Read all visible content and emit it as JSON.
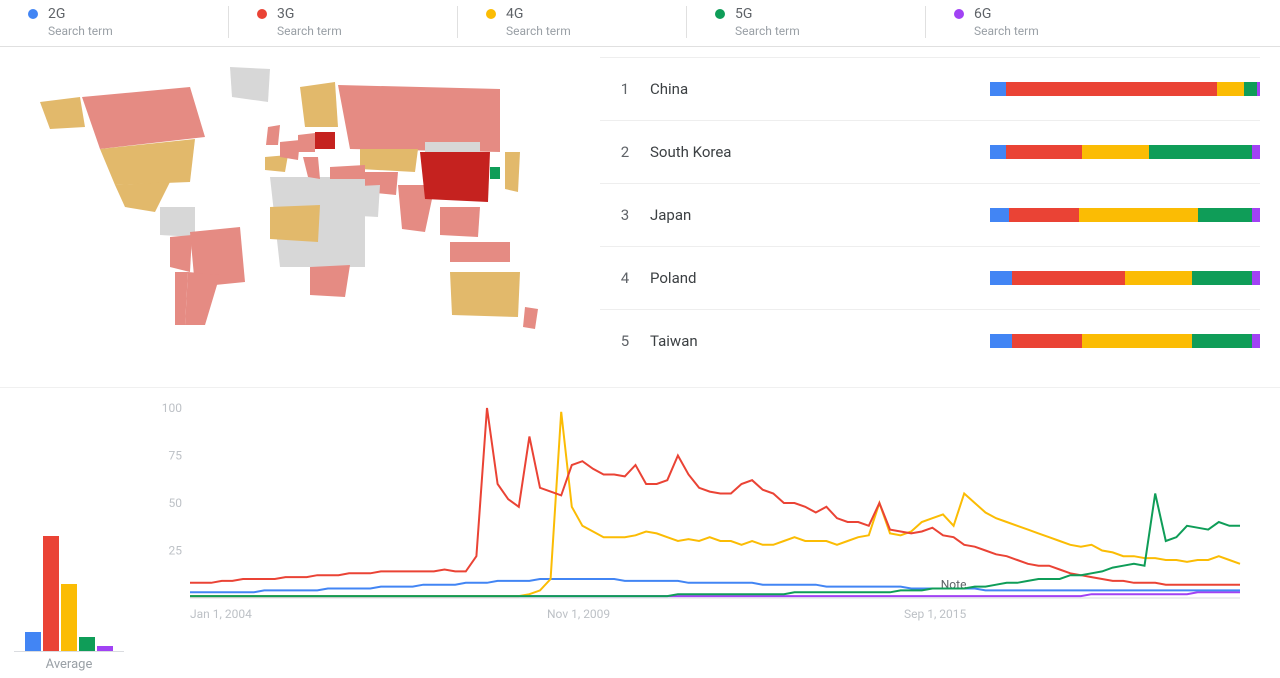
{
  "colors": {
    "s2g": "#4285f4",
    "s3g": "#ea4335",
    "s4g": "#fbbc04",
    "s5g": "#0f9d58",
    "s6g": "#a142f4",
    "muted_red": "#e58b83",
    "muted_yellow": "#e2b96b",
    "muted_dark_red": "#c5221f",
    "land_grey": "#d7d7d7",
    "text_muted": "#9aa0a6"
  },
  "legend": {
    "subtitle": "Search term",
    "items": [
      {
        "key": "s2g",
        "label": "2G"
      },
      {
        "key": "s3g",
        "label": "3G"
      },
      {
        "key": "s4g",
        "label": "4G"
      },
      {
        "key": "s5g",
        "label": "5G"
      },
      {
        "key": "s6g",
        "label": "6G"
      }
    ]
  },
  "ranked": {
    "columns": [
      "rank",
      "name",
      "breakdown"
    ],
    "rows": [
      {
        "rank": 1,
        "name": "China",
        "breakdown": {
          "s2g": 6,
          "s3g": 78,
          "s4g": 10,
          "s5g": 5,
          "s6g": 1
        }
      },
      {
        "rank": 2,
        "name": "South Korea",
        "breakdown": {
          "s2g": 6,
          "s3g": 28,
          "s4g": 25,
          "s5g": 38,
          "s6g": 3
        }
      },
      {
        "rank": 3,
        "name": "Japan",
        "breakdown": {
          "s2g": 7,
          "s3g": 26,
          "s4g": 44,
          "s5g": 20,
          "s6g": 3
        }
      },
      {
        "rank": 4,
        "name": "Poland",
        "breakdown": {
          "s2g": 8,
          "s3g": 42,
          "s4g": 25,
          "s5g": 22,
          "s6g": 3
        }
      },
      {
        "rank": 5,
        "name": "Taiwan",
        "breakdown": {
          "s2g": 8,
          "s3g": 26,
          "s4g": 41,
          "s5g": 22,
          "s6g": 3
        }
      }
    ]
  },
  "map": {
    "fill_default": "land_grey",
    "countries": {
      "canada": "muted_red",
      "usa": "muted_yellow",
      "mexico": "muted_yellow",
      "brazil": "muted_red",
      "peru": "muted_red",
      "argentina": "muted_red",
      "chile": "muted_red",
      "uk": "muted_red",
      "spain": "muted_yellow",
      "france": "muted_red",
      "germany": "muted_red",
      "italy": "muted_red",
      "poland": "muted_dark_red",
      "nordics": "muted_yellow",
      "russia": "muted_red",
      "kazakhstan": "muted_yellow",
      "turkey": "muted_red",
      "iran": "muted_red",
      "india": "muted_red",
      "china": "muted_dark_red",
      "mongolia": "land_grey",
      "japan": "muted_yellow",
      "skorea": "s5g",
      "seasia": "muted_red",
      "indonesia": "muted_red",
      "australia": "muted_yellow",
      "nz": "muted_red",
      "saudi": "land_grey",
      "egypt": "land_grey",
      "wafrica": "muted_yellow",
      "safrica": "muted_red",
      "alaska": "muted_yellow",
      "greenland": "land_grey"
    }
  },
  "average": {
    "label": "Average",
    "values": {
      "s2g": 8,
      "s3g": 48,
      "s4g": 28,
      "s5g": 6,
      "s6g": 2
    },
    "y_max": 50
  },
  "timeline": {
    "type": "line",
    "ylim": [
      0,
      100
    ],
    "y_ticks": [
      25,
      50,
      75,
      100
    ],
    "x_ticks": [
      {
        "label": "Jan 1, 2004",
        "x_frac": 0.0
      },
      {
        "label": "Nov 1, 2009",
        "x_frac": 0.34
      },
      {
        "label": "Sep 1, 2015",
        "x_frac": 0.68
      }
    ],
    "note": {
      "text": "Note",
      "x_frac": 0.715,
      "y_value": 4
    },
    "n_points": 100,
    "line_width": 2,
    "series": {
      "s2g": [
        3,
        3,
        3,
        3,
        3,
        3,
        3,
        4,
        4,
        4,
        4,
        4,
        4,
        5,
        5,
        5,
        5,
        5,
        6,
        6,
        6,
        6,
        7,
        7,
        7,
        7,
        8,
        8,
        8,
        9,
        9,
        9,
        9,
        10,
        10,
        10,
        10,
        10,
        10,
        10,
        10,
        9,
        9,
        9,
        9,
        9,
        9,
        8,
        8,
        8,
        8,
        8,
        8,
        8,
        7,
        7,
        7,
        7,
        7,
        7,
        6,
        6,
        6,
        6,
        6,
        6,
        6,
        6,
        5,
        5,
        5,
        5,
        5,
        5,
        5,
        4,
        4,
        4,
        4,
        4,
        4,
        4,
        4,
        4,
        4,
        4,
        4,
        4,
        4,
        4,
        4,
        4,
        4,
        4,
        4,
        4,
        4,
        4,
        4,
        4
      ],
      "s3g": [
        8,
        8,
        8,
        9,
        9,
        10,
        10,
        10,
        10,
        11,
        11,
        11,
        12,
        12,
        12,
        13,
        13,
        13,
        14,
        14,
        14,
        14,
        14,
        14,
        15,
        14,
        14,
        22,
        100,
        60,
        52,
        48,
        85,
        58,
        56,
        54,
        70,
        72,
        68,
        65,
        65,
        64,
        70,
        60,
        60,
        62,
        75,
        65,
        58,
        56,
        55,
        55,
        60,
        62,
        57,
        55,
        50,
        50,
        48,
        45,
        48,
        42,
        40,
        40,
        38,
        50,
        36,
        35,
        34,
        35,
        37,
        33,
        32,
        28,
        27,
        25,
        23,
        22,
        20,
        18,
        17,
        17,
        15,
        13,
        12,
        11,
        10,
        9,
        9,
        8,
        8,
        8,
        7,
        7,
        7,
        7,
        7,
        7,
        7,
        7
      ],
      "s4g": [
        1,
        1,
        1,
        1,
        1,
        1,
        1,
        1,
        1,
        1,
        1,
        1,
        1,
        1,
        1,
        1,
        1,
        1,
        1,
        1,
        1,
        1,
        1,
        1,
        1,
        1,
        1,
        1,
        1,
        1,
        1,
        1,
        2,
        4,
        10,
        98,
        48,
        38,
        35,
        32,
        32,
        32,
        33,
        35,
        34,
        32,
        30,
        31,
        30,
        32,
        30,
        30,
        28,
        30,
        28,
        28,
        30,
        32,
        30,
        30,
        30,
        28,
        30,
        32,
        33,
        50,
        34,
        33,
        35,
        40,
        42,
        44,
        38,
        55,
        50,
        45,
        42,
        40,
        38,
        36,
        34,
        32,
        30,
        28,
        27,
        28,
        25,
        24,
        22,
        22,
        21,
        21,
        20,
        20,
        19,
        20,
        20,
        22,
        20,
        18
      ],
      "s5g": [
        1,
        1,
        1,
        1,
        1,
        1,
        1,
        1,
        1,
        1,
        1,
        1,
        1,
        1,
        1,
        1,
        1,
        1,
        1,
        1,
        1,
        1,
        1,
        1,
        1,
        1,
        1,
        1,
        1,
        1,
        1,
        1,
        1,
        1,
        1,
        1,
        1,
        1,
        1,
        1,
        1,
        1,
        1,
        1,
        1,
        1,
        2,
        2,
        2,
        2,
        2,
        2,
        2,
        2,
        2,
        2,
        2,
        3,
        3,
        3,
        3,
        3,
        3,
        3,
        3,
        3,
        3,
        4,
        4,
        4,
        5,
        5,
        5,
        5,
        6,
        6,
        7,
        8,
        8,
        9,
        10,
        10,
        10,
        12,
        12,
        13,
        14,
        16,
        17,
        18,
        17,
        55,
        30,
        32,
        38,
        37,
        36,
        40,
        38,
        38
      ],
      "s6g": [
        1,
        1,
        1,
        1,
        1,
        1,
        1,
        1,
        1,
        1,
        1,
        1,
        1,
        1,
        1,
        1,
        1,
        1,
        1,
        1,
        1,
        1,
        1,
        1,
        1,
        1,
        1,
        1,
        1,
        1,
        1,
        1,
        1,
        1,
        1,
        1,
        1,
        1,
        1,
        1,
        1,
        1,
        1,
        1,
        1,
        1,
        1,
        1,
        1,
        1,
        1,
        1,
        1,
        1,
        1,
        1,
        1,
        1,
        1,
        1,
        1,
        1,
        1,
        1,
        1,
        1,
        1,
        1,
        1,
        1,
        1,
        1,
        1,
        1,
        1,
        1,
        1,
        1,
        1,
        1,
        1,
        1,
        1,
        1,
        1,
        2,
        2,
        2,
        2,
        2,
        2,
        2,
        2,
        2,
        2,
        3,
        3,
        3,
        3,
        3
      ]
    }
  }
}
